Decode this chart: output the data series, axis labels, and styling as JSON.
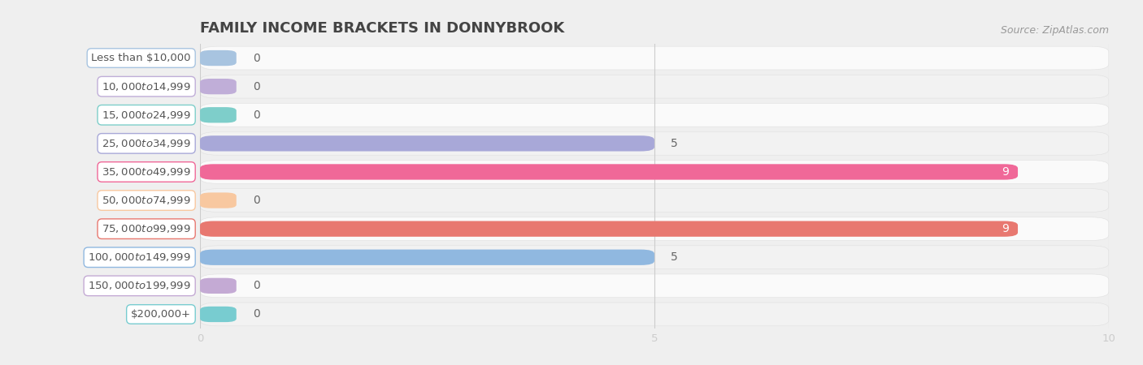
{
  "title": "FAMILY INCOME BRACKETS IN DONNYBROOK",
  "source": "Source: ZipAtlas.com",
  "categories": [
    "Less than $10,000",
    "$10,000 to $14,999",
    "$15,000 to $24,999",
    "$25,000 to $34,999",
    "$35,000 to $49,999",
    "$50,000 to $74,999",
    "$75,000 to $99,999",
    "$100,000 to $149,999",
    "$150,000 to $199,999",
    "$200,000+"
  ],
  "values": [
    0,
    0,
    0,
    5,
    9,
    0,
    9,
    5,
    0,
    0
  ],
  "bar_colors": [
    "#a8c4e0",
    "#c0aed8",
    "#7ececa",
    "#a8a8d8",
    "#f06898",
    "#f8c8a0",
    "#e87870",
    "#90b8e0",
    "#c4aad4",
    "#78ccd0"
  ],
  "xlim": [
    0,
    10
  ],
  "xticks": [
    0,
    5,
    10
  ],
  "bg_color": "#efefef",
  "row_colors": [
    "#fafafa",
    "#f2f2f2"
  ],
  "row_border_color": "#e0e0e0",
  "title_fontsize": 13,
  "source_fontsize": 9,
  "label_fontsize": 9.5,
  "value_fontsize": 10
}
